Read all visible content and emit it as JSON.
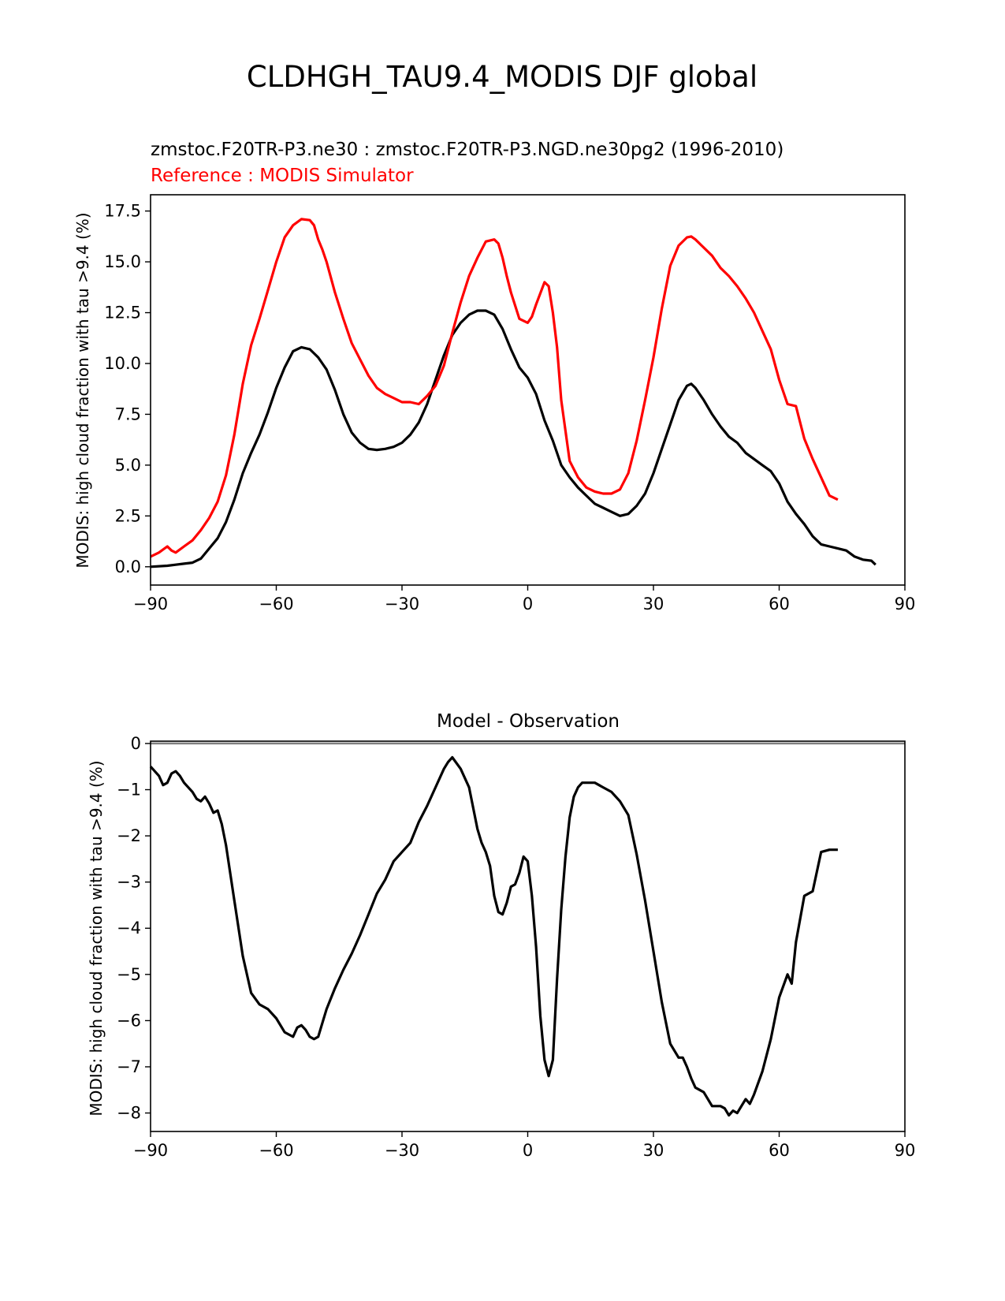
{
  "figure": {
    "suptitle": "CLDHGH_TAU9.4_MODIS DJF global"
  },
  "colors": {
    "test": "#000000",
    "reference": "#ff0000",
    "zero_line": "#808080"
  },
  "chart_data": [
    {
      "type": "line",
      "title_test": "zmstoc.F20TR-P3.ne30 : zmstoc.F20TR-P3.NGD.ne30pg2 (1996-2010)",
      "title_reference": "Reference : MODIS Simulator",
      "xlabel": "",
      "ylabel": "MODIS: high cloud fraction with tau >9.4 (%)",
      "xlim": [
        -90,
        90
      ],
      "ylim": [
        -0.9,
        18.3
      ],
      "xticks": [
        -90,
        -60,
        -30,
        0,
        30,
        60,
        90
      ],
      "xtick_labels": [
        "−90",
        "−60",
        "−30",
        "0",
        "30",
        "60",
        "90"
      ],
      "yticks": [
        0,
        2.5,
        5,
        7.5,
        10,
        12.5,
        15,
        17.5
      ],
      "ytick_labels": [
        "0.0",
        "2.5",
        "5.0",
        "7.5",
        "10.0",
        "12.5",
        "15.0",
        "17.5"
      ],
      "grid": false,
      "series": [
        {
          "role": "test",
          "color": "#000000",
          "x": [
            -90,
            -86,
            -84,
            -82,
            -80,
            -78,
            -76,
            -74,
            -72,
            -70,
            -68,
            -66,
            -64,
            -62,
            -60,
            -58,
            -56,
            -54,
            -52,
            -51,
            -50,
            -49,
            -48,
            -46,
            -44,
            -42,
            -40,
            -38,
            -36,
            -34,
            -32,
            -30,
            -28,
            -26,
            -24,
            -22,
            -20,
            -18,
            -16,
            -14,
            -12,
            -10,
            -8,
            -6,
            -4,
            -2,
            0,
            2,
            4,
            6,
            8,
            10,
            12,
            14,
            16,
            18,
            20,
            22,
            24,
            26,
            28,
            30,
            32,
            34,
            36,
            38,
            39,
            40,
            42,
            44,
            46,
            48,
            50,
            52,
            54,
            56,
            58,
            60,
            62,
            64,
            66,
            68,
            70,
            72,
            74,
            76,
            78,
            80,
            82,
            83
          ],
          "y": [
            0.0,
            0.05,
            0.1,
            0.15,
            0.2,
            0.4,
            0.9,
            1.4,
            2.2,
            3.3,
            4.6,
            5.6,
            6.5,
            7.6,
            8.8,
            9.8,
            10.6,
            10.8,
            10.7,
            10.5,
            10.3,
            10.0,
            9.7,
            8.7,
            7.5,
            6.6,
            6.1,
            5.8,
            5.75,
            5.8,
            5.9,
            6.1,
            6.5,
            7.1,
            8.0,
            9.2,
            10.4,
            11.4,
            12.0,
            12.4,
            12.6,
            12.6,
            12.4,
            11.7,
            10.7,
            9.8,
            9.3,
            8.5,
            7.2,
            6.2,
            5.0,
            4.4,
            3.9,
            3.5,
            3.1,
            2.9,
            2.7,
            2.5,
            2.6,
            3.0,
            3.6,
            4.6,
            5.8,
            7.0,
            8.2,
            8.9,
            9.0,
            8.8,
            8.2,
            7.5,
            6.9,
            6.4,
            6.1,
            5.6,
            5.3,
            5.0,
            4.7,
            4.1,
            3.2,
            2.6,
            2.1,
            1.5,
            1.1,
            1.0,
            0.9,
            0.8,
            0.5,
            0.35,
            0.3,
            0.1
          ]
        },
        {
          "role": "reference",
          "color": "#ff0000",
          "x": [
            -90,
            -88,
            -86,
            -85,
            -84,
            -82,
            -80,
            -78,
            -76,
            -74,
            -72,
            -70,
            -68,
            -66,
            -64,
            -62,
            -60,
            -58,
            -56,
            -54,
            -52,
            -51,
            -50,
            -49,
            -48,
            -46,
            -44,
            -42,
            -40,
            -38,
            -36,
            -34,
            -32,
            -30,
            -28,
            -26,
            -24,
            -22,
            -20,
            -18,
            -16,
            -14,
            -12,
            -10,
            -8,
            -7,
            -6,
            -5,
            -4,
            -2,
            0,
            1,
            2,
            4,
            5,
            6,
            7,
            8,
            10,
            12,
            14,
            16,
            18,
            20,
            22,
            24,
            26,
            28,
            30,
            32,
            34,
            36,
            38,
            39,
            40,
            42,
            44,
            46,
            48,
            50,
            52,
            54,
            56,
            58,
            60,
            62,
            64,
            66,
            68,
            70,
            72,
            74
          ],
          "y": [
            0.5,
            0.7,
            1.0,
            0.8,
            0.7,
            1.0,
            1.3,
            1.8,
            2.4,
            3.2,
            4.5,
            6.5,
            9.0,
            10.9,
            12.2,
            13.6,
            15.0,
            16.2,
            16.8,
            17.1,
            17.05,
            16.8,
            16.1,
            15.6,
            15.0,
            13.5,
            12.2,
            11.0,
            10.2,
            9.4,
            8.8,
            8.5,
            8.3,
            8.1,
            8.1,
            8.0,
            8.4,
            8.9,
            9.9,
            11.5,
            13.0,
            14.3,
            15.2,
            16.0,
            16.1,
            15.9,
            15.2,
            14.3,
            13.5,
            12.2,
            12.0,
            12.3,
            12.9,
            14.0,
            13.8,
            12.5,
            10.8,
            8.2,
            5.2,
            4.4,
            3.9,
            3.7,
            3.6,
            3.6,
            3.8,
            4.6,
            6.2,
            8.2,
            10.3,
            12.7,
            14.8,
            15.8,
            16.2,
            16.25,
            16.1,
            15.7,
            15.3,
            14.7,
            14.3,
            13.8,
            13.2,
            12.5,
            11.6,
            10.7,
            9.2,
            8.0,
            7.9,
            6.3,
            5.3,
            4.4,
            3.5,
            3.3
          ]
        }
      ]
    },
    {
      "type": "line",
      "title": "Model - Observation",
      "xlabel": "",
      "ylabel": "MODIS: high cloud fraction with tau >9.4 (%)",
      "xlim": [
        -90,
        90
      ],
      "ylim": [
        -8.4,
        0.05
      ],
      "xticks": [
        -90,
        -60,
        -30,
        0,
        30,
        60,
        90
      ],
      "xtick_labels": [
        "−90",
        "−60",
        "−30",
        "0",
        "30",
        "60",
        "90"
      ],
      "yticks": [
        0,
        -1,
        -2,
        -3,
        -4,
        -5,
        -6,
        -7,
        -8
      ],
      "ytick_labels": [
        "0",
        "−1",
        "−2",
        "−3",
        "−4",
        "−5",
        "−6",
        "−7",
        "−8"
      ],
      "grid": false,
      "zero_line": true,
      "series": [
        {
          "role": "difference",
          "color": "#000000",
          "x": [
            -90,
            -88,
            -87,
            -86,
            -85,
            -84,
            -83,
            -82,
            -80,
            -79,
            -78,
            -77,
            -76,
            -75,
            -74,
            -73,
            -72,
            -70,
            -68,
            -66,
            -64,
            -62,
            -60,
            -58,
            -56,
            -55,
            -54,
            -53,
            -52,
            -51,
            -50,
            -49,
            -48,
            -46,
            -44,
            -42,
            -40,
            -38,
            -36,
            -34,
            -32,
            -30,
            -28,
            -26,
            -24,
            -22,
            -20,
            -19,
            -18,
            -16,
            -14,
            -13,
            -12,
            -11,
            -10,
            -9,
            -8,
            -7,
            -6,
            -5,
            -4,
            -3,
            -2,
            -1,
            0,
            1,
            2,
            3,
            4,
            5,
            6,
            7,
            8,
            9,
            10,
            11,
            12,
            13,
            14,
            16,
            18,
            20,
            22,
            24,
            26,
            28,
            30,
            32,
            34,
            36,
            37,
            38,
            39,
            40,
            42,
            44,
            45,
            46,
            47,
            48,
            49,
            50,
            51,
            52,
            53,
            54,
            56,
            58,
            60,
            62,
            63,
            64,
            66,
            68,
            70,
            72,
            74
          ],
          "y": [
            -0.5,
            -0.7,
            -0.9,
            -0.85,
            -0.65,
            -0.6,
            -0.7,
            -0.85,
            -1.05,
            -1.2,
            -1.25,
            -1.15,
            -1.3,
            -1.5,
            -1.45,
            -1.75,
            -2.2,
            -3.4,
            -4.6,
            -5.4,
            -5.65,
            -5.75,
            -5.95,
            -6.25,
            -6.35,
            -6.15,
            -6.1,
            -6.2,
            -6.35,
            -6.4,
            -6.35,
            -6.05,
            -5.75,
            -5.3,
            -4.9,
            -4.55,
            -4.15,
            -3.7,
            -3.25,
            -2.95,
            -2.55,
            -2.35,
            -2.15,
            -1.7,
            -1.35,
            -0.95,
            -0.55,
            -0.4,
            -0.3,
            -0.55,
            -0.95,
            -1.4,
            -1.85,
            -2.15,
            -2.35,
            -2.65,
            -3.3,
            -3.65,
            -3.7,
            -3.45,
            -3.1,
            -3.05,
            -2.8,
            -2.45,
            -2.55,
            -3.3,
            -4.4,
            -5.9,
            -6.85,
            -7.2,
            -6.85,
            -5.1,
            -3.6,
            -2.45,
            -1.6,
            -1.15,
            -0.95,
            -0.85,
            -0.85,
            -0.85,
            -0.95,
            -1.05,
            -1.25,
            -1.55,
            -2.4,
            -3.4,
            -4.5,
            -5.6,
            -6.5,
            -6.8,
            -6.8,
            -7.0,
            -7.25,
            -7.45,
            -7.55,
            -7.85,
            -7.85,
            -7.85,
            -7.9,
            -8.05,
            -7.95,
            -8.0,
            -7.85,
            -7.7,
            -7.8,
            -7.6,
            -7.1,
            -6.4,
            -5.5,
            -5.0,
            -5.2,
            -4.3,
            -3.3,
            -3.2,
            -2.35,
            -2.3,
            -2.3
          ]
        }
      ]
    }
  ]
}
